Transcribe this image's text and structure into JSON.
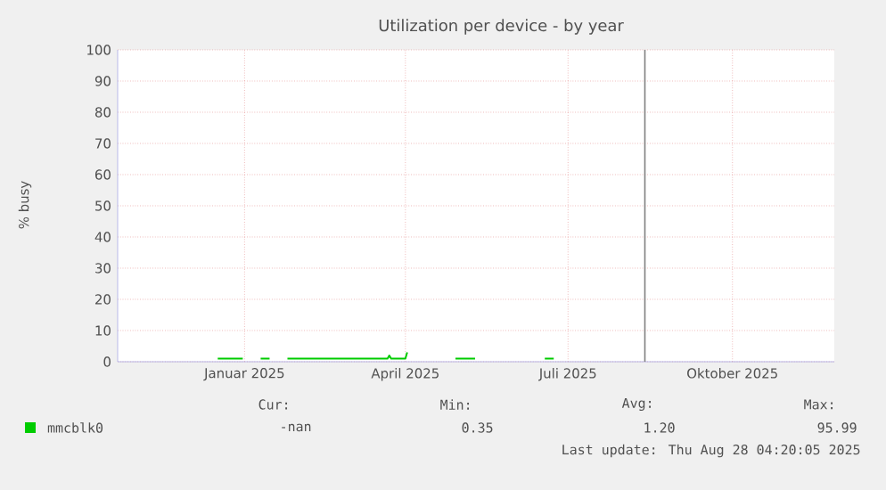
{
  "chart_data": {
    "type": "line",
    "title": "Utilization per device - by year",
    "ylabel": "% busy",
    "x": [
      "2025-01-01",
      "2025-01-15",
      "2025-01-20",
      "2025-01-25",
      "2025-01-30",
      "2025-02-03",
      "2025-02-09",
      "2025-03-10",
      "2025-03-12",
      "2025-04-06",
      "2025-04-07",
      "2025-04-08",
      "2025-04-16",
      "2025-04-17",
      "2025-04-30",
      "2025-05-14",
      "2025-05-25",
      "2025-06-15",
      "2025-07-03",
      "2025-07-08"
    ],
    "series": [
      {
        "name": "mmcblk0",
        "color": "#00cc00",
        "values": [
          1,
          1,
          null,
          1,
          1,
          null,
          1,
          1,
          1,
          1,
          2,
          1,
          1,
          3,
          null,
          1,
          1,
          null,
          1,
          1
        ]
      }
    ],
    "xlim": [
      "2024-11-06",
      "2025-12-12"
    ],
    "xticks": [
      {
        "value": "2025-01-16",
        "label": "Januar 2025"
      },
      {
        "value": "2025-04-16",
        "label": "April 2025"
      },
      {
        "value": "2025-07-16",
        "label": "Juli 2025"
      },
      {
        "value": "2025-10-16",
        "label": "Oktober 2025"
      }
    ],
    "ylim": [
      0,
      100
    ],
    "yticks": [
      0,
      10,
      20,
      30,
      40,
      50,
      60,
      70,
      80,
      90,
      100
    ],
    "grid": true,
    "legend": "bottom left",
    "ref_lines": [
      {
        "axis": "x",
        "value": "2025-08-28",
        "color": "#808080"
      }
    ],
    "annotations": [
      "Cur:",
      "Min:",
      "Avg:",
      "Max:",
      "-nan",
      "0.35",
      "1.20",
      "95.99",
      "Last update: Thu Aug 28 04:20:05 2025"
    ]
  }
}
